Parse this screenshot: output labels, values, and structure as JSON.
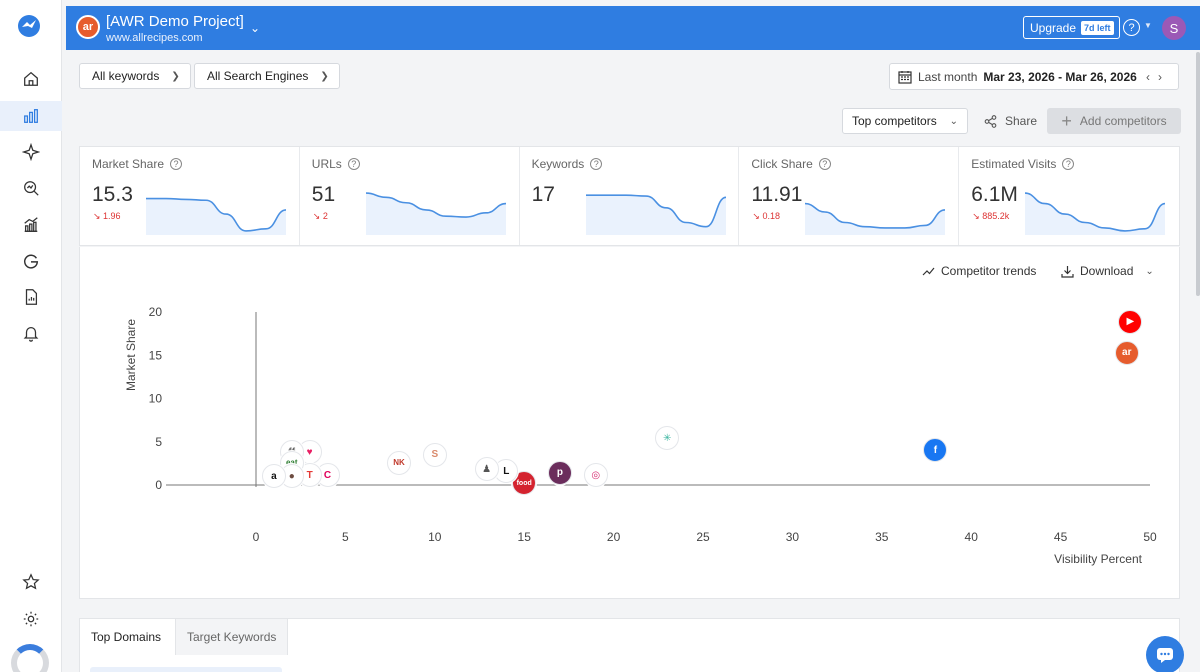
{
  "project": {
    "name": "[AWR Demo Project]",
    "url": "www.allrecipes.com",
    "logo_text": "ar"
  },
  "header": {
    "upgrade_label": "Upgrade",
    "trial_badge": "7d left",
    "help_label": "?",
    "avatar_initial": "S"
  },
  "filters": {
    "keywords_label": "All keywords",
    "engines_label": "All Search Engines",
    "period_label": "Last month",
    "date_range": "Mar 23, 2026 - Mar 26, 2026"
  },
  "toolbar": {
    "competitors_dropdown": "Top competitors",
    "share_label": "Share",
    "add_competitors_label": "Add competitors"
  },
  "metrics": [
    {
      "title": "Market Share",
      "value": "15.3",
      "delta": "1.96",
      "trend": [
        0.82,
        0.82,
        0.8,
        0.78,
        0.45,
        0.05,
        0.1,
        0.55
      ]
    },
    {
      "title": "URLs",
      "value": "51",
      "delta": "2",
      "trend": [
        0.95,
        0.85,
        0.72,
        0.55,
        0.4,
        0.38,
        0.48,
        0.7
      ]
    },
    {
      "title": "Keywords",
      "value": "17",
      "delta": "",
      "trend": [
        0.9,
        0.9,
        0.9,
        0.88,
        0.6,
        0.25,
        0.15,
        0.85
      ]
    },
    {
      "title": "Click Share",
      "value": "11.91",
      "delta": "0.18",
      "trend": [
        0.7,
        0.5,
        0.25,
        0.15,
        0.12,
        0.12,
        0.18,
        0.55
      ]
    },
    {
      "title": "Estimated Visits",
      "value": "6.1M",
      "delta": "885.2k",
      "trend": [
        0.95,
        0.7,
        0.45,
        0.25,
        0.12,
        0.05,
        0.1,
        0.7
      ]
    }
  ],
  "chart_actions": {
    "trends_label": "Competitor trends",
    "download_label": "Download"
  },
  "chart_data": {
    "type": "scatter",
    "xlabel": "Visibility Percent",
    "ylabel": "Market Share",
    "xlim": [
      0,
      50
    ],
    "ylim": [
      0,
      20
    ],
    "xticks": [
      0,
      5,
      10,
      15,
      20,
      25,
      30,
      35,
      40,
      45,
      50
    ],
    "yticks": [
      0,
      5,
      10,
      15,
      20
    ],
    "points": [
      {
        "name": "youtube",
        "x": 48.9,
        "y": 18.9,
        "color": "#ff0000",
        "glyph": "▶"
      },
      {
        "name": "allrecipes",
        "x": 48.7,
        "y": 15.3,
        "color": "#e65c2d",
        "glyph": "ar"
      },
      {
        "name": "facebook",
        "x": 38.0,
        "y": 4.0,
        "color": "#1877f2",
        "glyph": "f"
      },
      {
        "name": "spinner-site",
        "x": 23.0,
        "y": 5.4,
        "color": "#3bb6a0",
        "glyph": "✳"
      },
      {
        "name": "instagram",
        "x": 19.0,
        "y": 1.1,
        "color": "#d6286e",
        "glyph": "◎"
      },
      {
        "name": "purple-p",
        "x": 17.0,
        "y": 1.4,
        "color": "#6b2d5c",
        "glyph": "p"
      },
      {
        "name": "food-network",
        "x": 15.0,
        "y": 0.2,
        "color": "#d4232f",
        "glyph": "food"
      },
      {
        "name": "l-site",
        "x": 14.0,
        "y": 1.6,
        "color": "#111111",
        "glyph": "L"
      },
      {
        "name": "chef-site",
        "x": 12.9,
        "y": 1.8,
        "color": "#555555",
        "glyph": "♟"
      },
      {
        "name": "s-site",
        "x": 10.0,
        "y": 3.5,
        "color": "#d98a6c",
        "glyph": "S"
      },
      {
        "name": "nk-site",
        "x": 8.0,
        "y": 2.6,
        "color": "#c0392b",
        "glyph": "NK"
      },
      {
        "name": "c-site",
        "x": 4.0,
        "y": 1.1,
        "color": "#e0005a",
        "glyph": "C"
      },
      {
        "name": "heart-site",
        "x": 3.0,
        "y": 3.8,
        "color": "#e91e63",
        "glyph": "♥"
      },
      {
        "name": "t-site",
        "x": 3.0,
        "y": 1.1,
        "color": "#e53935",
        "glyph": "T"
      },
      {
        "name": "blog-site",
        "x": 2.0,
        "y": 3.8,
        "color": "#666666",
        "glyph": "ff"
      },
      {
        "name": "eat-site",
        "x": 2.0,
        "y": 2.6,
        "color": "#2e7d32",
        "glyph": "eat"
      },
      {
        "name": "cake-site",
        "x": 2.0,
        "y": 1.0,
        "color": "#6d4c41",
        "glyph": "●"
      },
      {
        "name": "a-site",
        "x": 1.0,
        "y": 1.0,
        "color": "#111111",
        "glyph": "a"
      }
    ]
  },
  "tabs": [
    {
      "label": "Top Domains",
      "active": true
    },
    {
      "label": "Target Keywords",
      "active": false
    }
  ],
  "colors": {
    "brand": "#2f7de1",
    "delta_negative": "#d33333",
    "trend_line": "#4a90e2"
  }
}
